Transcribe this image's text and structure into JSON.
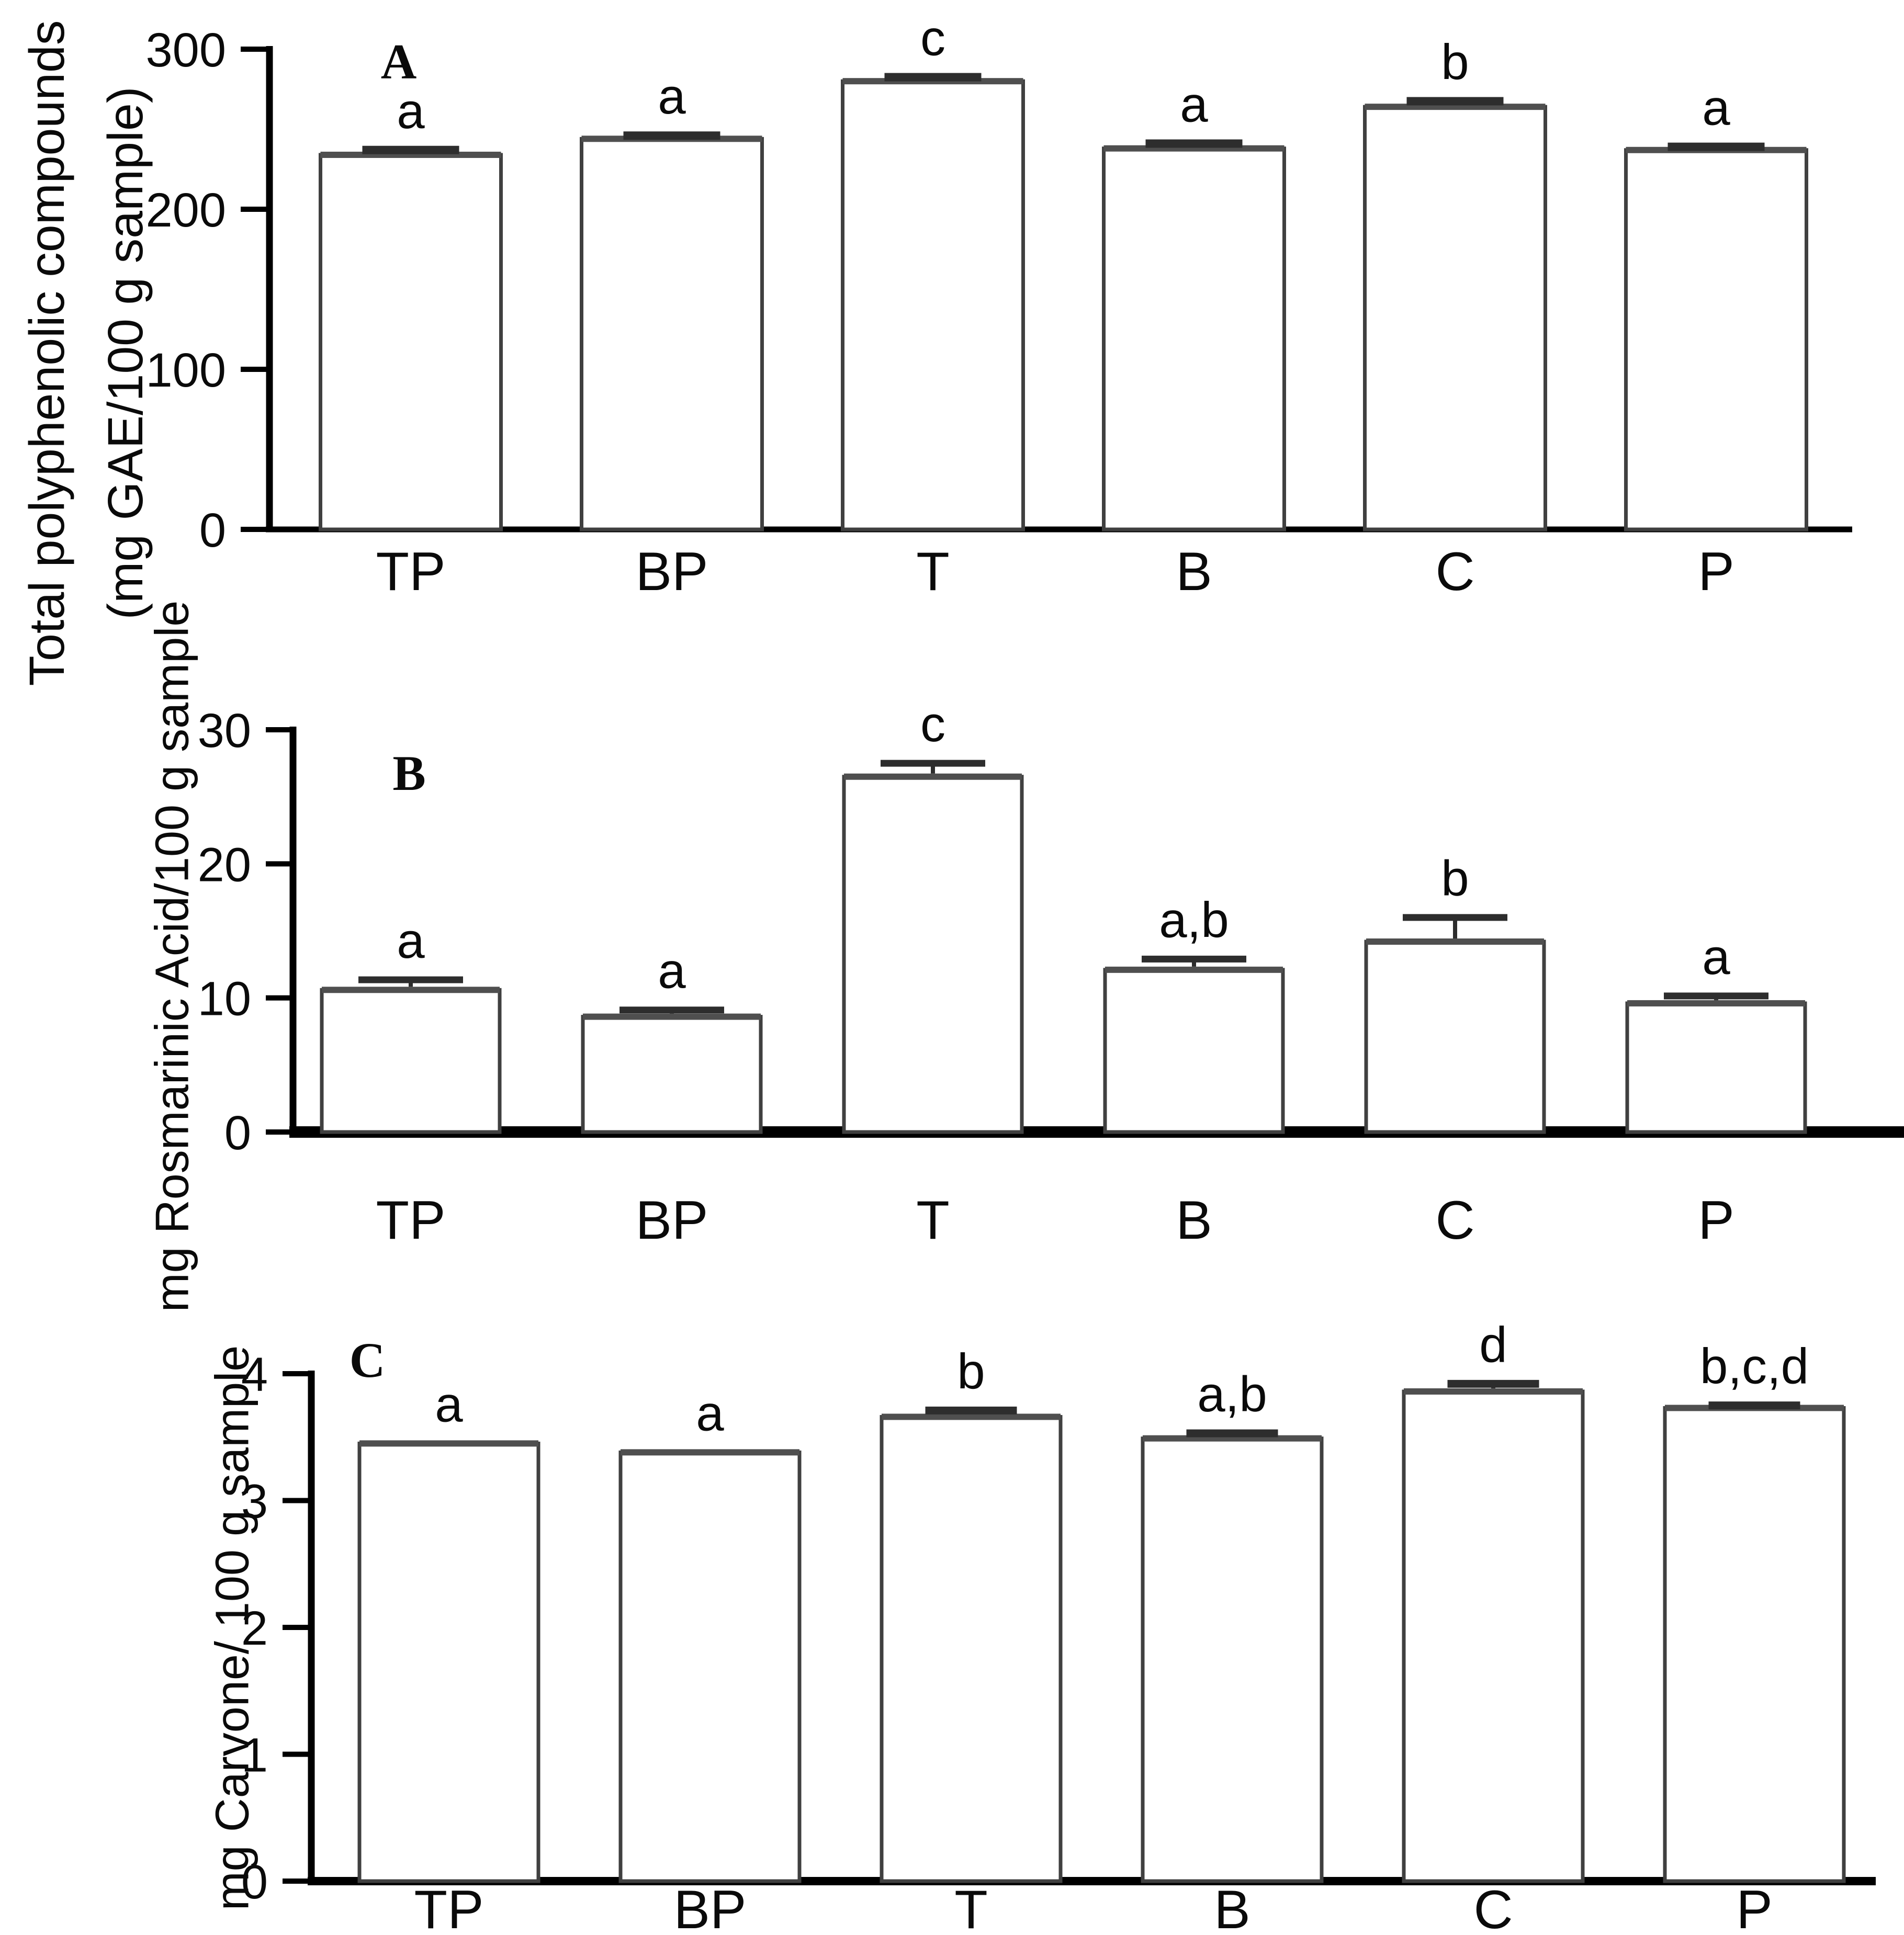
{
  "figure": {
    "background": "#ffffff",
    "axis_color": "#000000",
    "bar_fill": "#ffffff",
    "bar_stroke": "#404040",
    "bar_top_edge": "#4f4f4f",
    "error_color": "#2d2d2d",
    "text_color": "#0a0a0a"
  },
  "chart_data": [
    {
      "type": "bar",
      "panel_label": "A",
      "ylabel_lines": [
        "Total polyphenolic compounds",
        "(mg GAE/100 g sample)"
      ],
      "xlabel": "",
      "categories": [
        "TP",
        "BP",
        "T",
        "B",
        "C",
        "P"
      ],
      "values": [
        234,
        244,
        280,
        238,
        264,
        237
      ],
      "errors": [
        3,
        2,
        2.5,
        3,
        3.5,
        2
      ],
      "sig_letters": [
        "a",
        "a",
        "c",
        "a",
        "b",
        "a"
      ],
      "ylim": [
        0,
        300
      ],
      "yticks": [
        0,
        100,
        200,
        300
      ],
      "grid": false,
      "legend": false
    },
    {
      "type": "bar",
      "panel_label": "B",
      "ylabel_lines": [
        "mg Rosmarinic Acid/100 g sample"
      ],
      "xlabel": "",
      "categories": [
        "TP",
        "BP",
        "T",
        "B",
        "C",
        "P"
      ],
      "values": [
        10.6,
        8.6,
        26.5,
        12.1,
        14.2,
        9.6
      ],
      "errors": [
        0.75,
        0.5,
        1.0,
        0.8,
        1.8,
        0.55
      ],
      "sig_letters": [
        "a",
        "a",
        "c",
        "a,b",
        "b",
        "a"
      ],
      "ylim": [
        0,
        30
      ],
      "yticks": [
        0,
        10,
        20,
        30
      ],
      "grid": false,
      "legend": false
    },
    {
      "type": "bar",
      "panel_label": "C",
      "ylabel_lines": [
        "mg Carvone/ 100 g sample"
      ],
      "xlabel": "",
      "categories": [
        "TP",
        "BP",
        "T",
        "B",
        "C",
        "P"
      ],
      "values": [
        3.45,
        3.38,
        3.66,
        3.49,
        3.86,
        3.73
      ],
      "errors": [
        0,
        0,
        0.05,
        0.04,
        0.06,
        0.02
      ],
      "sig_letters": [
        "a",
        "a",
        "b",
        "a,b",
        "d",
        "b,c,d"
      ],
      "ylim": [
        0,
        4
      ],
      "yticks": [
        0,
        1,
        2,
        3,
        4
      ],
      "grid": false,
      "legend": false
    }
  ]
}
